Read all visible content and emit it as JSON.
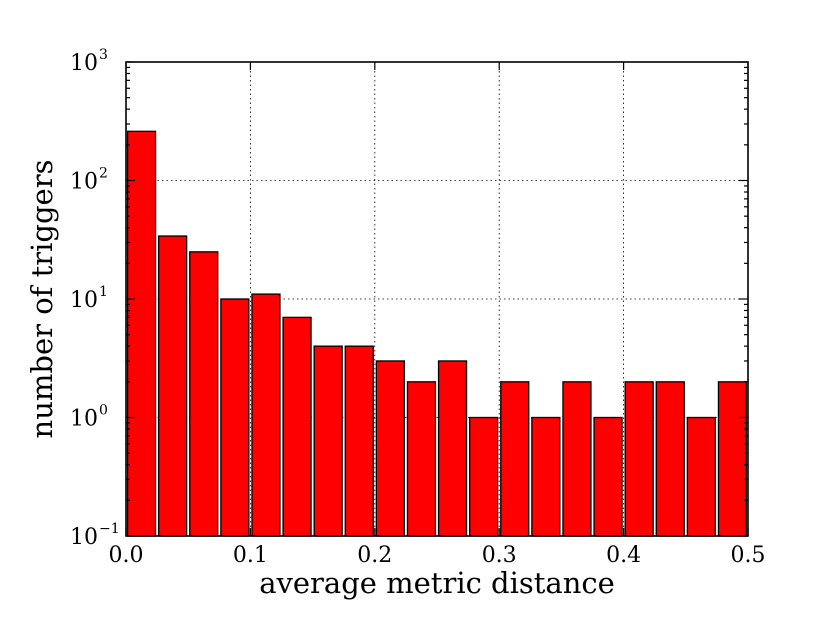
{
  "chart_data": {
    "type": "bar",
    "xlabel": "average metric distance",
    "ylabel": "number of triggers",
    "xlim": [
      0.0,
      0.5
    ],
    "ylim": [
      0.1,
      1000
    ],
    "yscale": "log",
    "grid": true,
    "bar_color": "#ff0000",
    "x_ticks": [
      "0.0",
      "0.1",
      "0.2",
      "0.3",
      "0.4",
      "0.5"
    ],
    "y_ticks": [
      {
        "base": "10",
        "exp": "−1"
      },
      {
        "base": "10",
        "exp": "0"
      },
      {
        "base": "10",
        "exp": "1"
      },
      {
        "base": "10",
        "exp": "2"
      },
      {
        "base": "10",
        "exp": "3"
      }
    ],
    "bin_width": 0.025,
    "x": [
      0.0125,
      0.0375,
      0.0625,
      0.0875,
      0.1125,
      0.1375,
      0.1625,
      0.1875,
      0.2125,
      0.2375,
      0.2625,
      0.2875,
      0.3125,
      0.3375,
      0.3625,
      0.3875,
      0.4125,
      0.4375,
      0.4625,
      0.4875
    ],
    "values": [
      260,
      34,
      25,
      10,
      11,
      7,
      4,
      4,
      3,
      2,
      3,
      1,
      2,
      1,
      2,
      1,
      2,
      2,
      1,
      2
    ]
  }
}
